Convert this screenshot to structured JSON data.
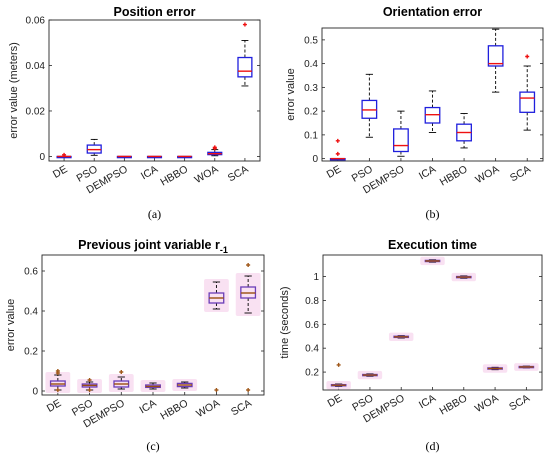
{
  "chart_data": [
    {
      "type": "box",
      "title": "Position error",
      "title_sub": "",
      "xlabel": "",
      "ylabel": "error value (meters)",
      "ylim": [
        -0.002,
        0.06
      ],
      "yticks": [
        0,
        0.02,
        0.04,
        0.06
      ],
      "ytick_labels": [
        "0",
        "0.02",
        "0.04",
        "0.06"
      ],
      "caption": "(a)",
      "categories": [
        "DE",
        "PSO",
        "DEMPSO",
        "ICA",
        "HBBO",
        "WOA",
        "SCA"
      ],
      "boxes": [
        {
          "low": 0,
          "q1": 0,
          "median": 0,
          "q3": 0,
          "high": 0,
          "outliers": [
            0.0007
          ]
        },
        {
          "low": 0.0005,
          "q1": 0.0015,
          "median": 0.003,
          "q3": 0.005,
          "high": 0.0075,
          "outliers": []
        },
        {
          "low": 0,
          "q1": 0,
          "median": 0,
          "q3": 0,
          "high": 0,
          "outliers": []
        },
        {
          "low": 0,
          "q1": 0,
          "median": 0,
          "q3": 0,
          "high": 0,
          "outliers": []
        },
        {
          "low": 0,
          "q1": 0,
          "median": 0,
          "q3": 0,
          "high": 0,
          "outliers": []
        },
        {
          "low": 0.0003,
          "q1": 0.0008,
          "median": 0.0012,
          "q3": 0.0018,
          "high": 0.003,
          "outliers": [
            0.004,
            0.0035
          ]
        },
        {
          "low": 0.031,
          "q1": 0.035,
          "median": 0.0375,
          "q3": 0.0435,
          "high": 0.051,
          "outliers": [
            0.058
          ]
        }
      ]
    },
    {
      "type": "box",
      "title": "Orientation error",
      "title_sub": "",
      "xlabel": "",
      "ylabel": "error value",
      "ylim": [
        -0.01,
        0.55
      ],
      "yticks": [
        0,
        0.1,
        0.2,
        0.3,
        0.4,
        0.5
      ],
      "ytick_labels": [
        "0",
        "0.1",
        "0.2",
        "0.3",
        "0.4",
        "0.5"
      ],
      "caption": "(b)",
      "categories": [
        "DE",
        "PSO",
        "DEMPSO",
        "ICA",
        "HBBO",
        "WOA",
        "SCA"
      ],
      "boxes": [
        {
          "low": 0,
          "q1": 0,
          "median": 0,
          "q3": 0,
          "high": 0,
          "outliers": [
            0.075,
            0.02
          ]
        },
        {
          "low": 0.09,
          "q1": 0.17,
          "median": 0.205,
          "q3": 0.245,
          "high": 0.355,
          "outliers": []
        },
        {
          "low": 0.01,
          "q1": 0.03,
          "median": 0.055,
          "q3": 0.125,
          "high": 0.2,
          "outliers": []
        },
        {
          "low": 0.11,
          "q1": 0.15,
          "median": 0.185,
          "q3": 0.215,
          "high": 0.285,
          "outliers": []
        },
        {
          "low": 0.045,
          "q1": 0.075,
          "median": 0.11,
          "q3": 0.145,
          "high": 0.19,
          "outliers": []
        },
        {
          "low": 0.28,
          "q1": 0.39,
          "median": 0.4,
          "q3": 0.475,
          "high": 0.545,
          "outliers": []
        },
        {
          "low": 0.12,
          "q1": 0.195,
          "median": 0.255,
          "q3": 0.28,
          "high": 0.39,
          "outliers": [
            0.43
          ]
        }
      ]
    },
    {
      "type": "box",
      "title": "Previous joint variable r",
      "title_sub": "-1",
      "xlabel": "",
      "ylabel": "error value",
      "ylim": [
        -0.02,
        0.68
      ],
      "yticks": [
        0,
        0.2,
        0.4,
        0.6
      ],
      "ytick_labels": [
        "0",
        "0.2",
        "0.4",
        "0.6"
      ],
      "caption": "(c)",
      "categories": [
        "DE",
        "PSO",
        "DEMPSO",
        "ICA",
        "HBBO",
        "WOA",
        "SCA"
      ],
      "boxes": [
        {
          "low": 0.005,
          "q1": 0.025,
          "median": 0.035,
          "q3": 0.05,
          "high": 0.08,
          "outliers": [
            0.1,
            0.09,
            0.005
          ]
        },
        {
          "low": 0.005,
          "q1": 0.02,
          "median": 0.028,
          "q3": 0.035,
          "high": 0.045,
          "outliers": [
            0.055,
            0.005
          ]
        },
        {
          "low": 0.01,
          "q1": 0.02,
          "median": 0.035,
          "q3": 0.05,
          "high": 0.07,
          "outliers": [
            0.095
          ]
        },
        {
          "low": 0.01,
          "q1": 0.018,
          "median": 0.023,
          "q3": 0.03,
          "high": 0.04,
          "outliers": []
        },
        {
          "low": 0.015,
          "q1": 0.022,
          "median": 0.03,
          "q3": 0.038,
          "high": 0.045,
          "outliers": []
        },
        {
          "low": 0.41,
          "q1": 0.44,
          "median": 0.465,
          "q3": 0.49,
          "high": 0.545,
          "outliers": [
            0.005
          ]
        },
        {
          "low": 0.39,
          "q1": 0.465,
          "median": 0.49,
          "q3": 0.52,
          "high": 0.575,
          "outliers": [
            0.63,
            0.005
          ]
        }
      ]
    },
    {
      "type": "box",
      "title": "Execution time",
      "title_sub": "",
      "xlabel": "",
      "ylabel": "time (seconds)",
      "ylim": [
        0.05,
        1.18
      ],
      "yticks": [
        0.2,
        0.4,
        0.6,
        0.8,
        1.0
      ],
      "ytick_labels": [
        "0.2",
        "0.4",
        "0.6",
        "0.8",
        "1"
      ],
      "caption": "(d)",
      "categories": [
        "DE",
        "PSO",
        "DEMPSO",
        "ICA",
        "HBBO",
        "WOA",
        "SCA"
      ],
      "boxes": [
        {
          "low": 0.08,
          "q1": 0.085,
          "median": 0.09,
          "q3": 0.095,
          "high": 0.1,
          "outliers": [
            0.26
          ]
        },
        {
          "low": 0.165,
          "q1": 0.17,
          "median": 0.175,
          "q3": 0.18,
          "high": 0.185,
          "outliers": []
        },
        {
          "low": 0.485,
          "q1": 0.49,
          "median": 0.495,
          "q3": 0.5,
          "high": 0.505,
          "outliers": []
        },
        {
          "low": 1.12,
          "q1": 1.125,
          "median": 1.13,
          "q3": 1.135,
          "high": 1.14,
          "outliers": []
        },
        {
          "low": 0.985,
          "q1": 0.99,
          "median": 0.995,
          "q3": 1.0,
          "high": 1.005,
          "outliers": []
        },
        {
          "low": 0.22,
          "q1": 0.225,
          "median": 0.23,
          "q3": 0.235,
          "high": 0.24,
          "outliers": []
        },
        {
          "low": 0.235,
          "q1": 0.24,
          "median": 0.243,
          "q3": 0.247,
          "high": 0.25,
          "outliers": []
        }
      ]
    }
  ],
  "colors": {
    "box_ab": "#1f1fdd",
    "median_ab": "#ee1111",
    "outlier_ab": "#ee1111",
    "box_cd": "#6a3db8",
    "median_cd": "#9a4e10",
    "outlier_cd": "#a0581a",
    "halo_cd": "#f7d9ef",
    "whisker": "#000000",
    "axis": "#262626"
  }
}
